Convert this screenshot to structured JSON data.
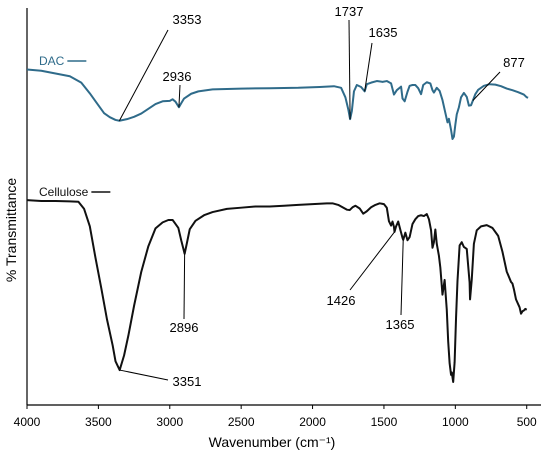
{
  "chart_data": {
    "type": "line",
    "title": "",
    "xlabel": "Wavenumber (cm⁻¹)",
    "ylabel": "% Transmittance",
    "xlim": [
      4000,
      400
    ],
    "x_reversed": true,
    "y_ticks_shown": false,
    "ylim": [
      0,
      100
    ],
    "grid": false,
    "x_ticks": [
      4000,
      3500,
      3000,
      2500,
      2000,
      1500,
      1000,
      500
    ],
    "x_tick_labels": [
      "4000",
      "3500",
      "3000",
      "2500",
      "2000",
      "1500",
      "1000",
      "500"
    ],
    "legend": "inline-top-left",
    "series": [
      {
        "name": "DAC",
        "label": "DAC",
        "color": "#2f6b8a",
        "points": [
          [
            4000,
            84.5
          ],
          [
            3900,
            84.2
          ],
          [
            3800,
            83.5
          ],
          [
            3700,
            82.8
          ],
          [
            3620,
            81.2
          ],
          [
            3560,
            78.5
          ],
          [
            3520,
            76.5
          ],
          [
            3460,
            73.5
          ],
          [
            3420,
            72.5
          ],
          [
            3380,
            71.8
          ],
          [
            3353,
            71.6
          ],
          [
            3300,
            72.0
          ],
          [
            3250,
            72.6
          ],
          [
            3200,
            73.4
          ],
          [
            3150,
            74.6
          ],
          [
            3100,
            75.8
          ],
          [
            3050,
            76.5
          ],
          [
            3000,
            76.6
          ],
          [
            2980,
            77.0
          ],
          [
            2960,
            76.4
          ],
          [
            2936,
            75.0
          ],
          [
            2920,
            76.0
          ],
          [
            2900,
            77.2
          ],
          [
            2850,
            78.4
          ],
          [
            2800,
            79.0
          ],
          [
            2700,
            79.5
          ],
          [
            2500,
            79.7
          ],
          [
            2300,
            79.8
          ],
          [
            2100,
            79.9
          ],
          [
            1950,
            80.1
          ],
          [
            1850,
            80.3
          ],
          [
            1800,
            79.9
          ],
          [
            1770,
            77.5
          ],
          [
            1750,
            74.5
          ],
          [
            1737,
            72.0
          ],
          [
            1725,
            74.0
          ],
          [
            1710,
            79.0
          ],
          [
            1690,
            80.6
          ],
          [
            1660,
            80.1
          ],
          [
            1635,
            79.0
          ],
          [
            1620,
            80.8
          ],
          [
            1590,
            81.2
          ],
          [
            1550,
            81.6
          ],
          [
            1510,
            81.4
          ],
          [
            1480,
            81.6
          ],
          [
            1450,
            81.0
          ],
          [
            1430,
            78.2
          ],
          [
            1410,
            79.3
          ],
          [
            1380,
            80.2
          ],
          [
            1370,
            77.2
          ],
          [
            1355,
            76.5
          ],
          [
            1335,
            78.9
          ],
          [
            1320,
            80.4
          ],
          [
            1300,
            80.6
          ],
          [
            1280,
            80.6
          ],
          [
            1260,
            79.8
          ],
          [
            1240,
            78.3
          ],
          [
            1225,
            80.6
          ],
          [
            1200,
            81.3
          ],
          [
            1175,
            81.0
          ],
          [
            1160,
            79.3
          ],
          [
            1150,
            78.7
          ],
          [
            1130,
            79.9
          ],
          [
            1110,
            79.1
          ],
          [
            1090,
            76.8
          ],
          [
            1070,
            73.6
          ],
          [
            1055,
            71.2
          ],
          [
            1045,
            72.1
          ],
          [
            1030,
            69.3
          ],
          [
            1020,
            67.0
          ],
          [
            1010,
            67.6
          ],
          [
            1000,
            70.6
          ],
          [
            990,
            73.2
          ],
          [
            975,
            75.0
          ],
          [
            960,
            77.5
          ],
          [
            940,
            78.6
          ],
          [
            920,
            77.6
          ],
          [
            905,
            75.4
          ],
          [
            890,
            75.5
          ],
          [
            877,
            76.7
          ],
          [
            860,
            78.3
          ],
          [
            840,
            79.4
          ],
          [
            800,
            80.4
          ],
          [
            760,
            80.8
          ],
          [
            720,
            80.7
          ],
          [
            680,
            80.3
          ],
          [
            640,
            79.7
          ],
          [
            600,
            79.3
          ],
          [
            560,
            78.8
          ],
          [
            520,
            78.2
          ],
          [
            500,
            77.5
          ],
          [
            490,
            77.4
          ]
        ]
      },
      {
        "name": "Cellulose",
        "label": "Cellulose",
        "color": "#111111",
        "points": [
          [
            4000,
            51.6
          ],
          [
            3900,
            51.4
          ],
          [
            3800,
            51.4
          ],
          [
            3700,
            51.3
          ],
          [
            3640,
            51.2
          ],
          [
            3600,
            49.4
          ],
          [
            3560,
            45.0
          ],
          [
            3520,
            37.0
          ],
          [
            3480,
            29.5
          ],
          [
            3440,
            21.6
          ],
          [
            3400,
            15.0
          ],
          [
            3380,
            11.0
          ],
          [
            3351,
            8.8
          ],
          [
            3320,
            12.5
          ],
          [
            3290,
            17.5
          ],
          [
            3250,
            25.0
          ],
          [
            3200,
            33.5
          ],
          [
            3150,
            40.0
          ],
          [
            3100,
            44.5
          ],
          [
            3050,
            46.0
          ],
          [
            3010,
            46.6
          ],
          [
            2980,
            46.6
          ],
          [
            2960,
            45.6
          ],
          [
            2940,
            44.6
          ],
          [
            2920,
            41.5
          ],
          [
            2905,
            39.4
          ],
          [
            2896,
            38.1
          ],
          [
            2880,
            40.8
          ],
          [
            2860,
            44.3
          ],
          [
            2820,
            46.4
          ],
          [
            2760,
            47.8
          ],
          [
            2700,
            48.6
          ],
          [
            2600,
            49.4
          ],
          [
            2500,
            49.7
          ],
          [
            2400,
            50.0
          ],
          [
            2300,
            50.0
          ],
          [
            2200,
            50.2
          ],
          [
            2100,
            50.4
          ],
          [
            2000,
            50.6
          ],
          [
            1900,
            50.8
          ],
          [
            1860,
            50.8
          ],
          [
            1820,
            50.4
          ],
          [
            1790,
            49.8
          ],
          [
            1760,
            49.2
          ],
          [
            1740,
            49.1
          ],
          [
            1720,
            49.8
          ],
          [
            1700,
            50.2
          ],
          [
            1670,
            49.5
          ],
          [
            1645,
            48.2
          ],
          [
            1620,
            48.8
          ],
          [
            1590,
            49.8
          ],
          [
            1560,
            50.4
          ],
          [
            1530,
            50.8
          ],
          [
            1500,
            50.6
          ],
          [
            1480,
            49.7
          ],
          [
            1465,
            46.3
          ],
          [
            1450,
            45.2
          ],
          [
            1440,
            46.2
          ],
          [
            1430,
            44.9
          ],
          [
            1426,
            43.6
          ],
          [
            1415,
            45.0
          ],
          [
            1400,
            46.2
          ],
          [
            1385,
            44.1
          ],
          [
            1370,
            42.1
          ],
          [
            1365,
            41.6
          ],
          [
            1350,
            43.4
          ],
          [
            1335,
            41.5
          ],
          [
            1320,
            42.3
          ],
          [
            1300,
            45.6
          ],
          [
            1280,
            46.8
          ],
          [
            1260,
            47.6
          ],
          [
            1240,
            47.8
          ],
          [
            1220,
            47.6
          ],
          [
            1200,
            48.1
          ],
          [
            1185,
            46.8
          ],
          [
            1170,
            44.0
          ],
          [
            1160,
            39.6
          ],
          [
            1150,
            41.0
          ],
          [
            1140,
            44.2
          ],
          [
            1130,
            40.6
          ],
          [
            1115,
            37.6
          ],
          [
            1105,
            34.6
          ],
          [
            1090,
            27.8
          ],
          [
            1075,
            31.5
          ],
          [
            1060,
            24.0
          ],
          [
            1050,
            16.0
          ],
          [
            1040,
            10.5
          ],
          [
            1030,
            7.6
          ],
          [
            1025,
            8.2
          ],
          [
            1015,
            5.8
          ],
          [
            1005,
            10.8
          ],
          [
            995,
            22.0
          ],
          [
            985,
            31.2
          ],
          [
            970,
            40.2
          ],
          [
            955,
            41.0
          ],
          [
            940,
            39.8
          ],
          [
            920,
            39.3
          ],
          [
            900,
            30.8
          ],
          [
            897,
            26.6
          ],
          [
            885,
            31.6
          ],
          [
            870,
            40.6
          ],
          [
            850,
            44.0
          ],
          [
            820,
            45.0
          ],
          [
            780,
            45.3
          ],
          [
            740,
            44.6
          ],
          [
            700,
            42.6
          ],
          [
            670,
            38.6
          ],
          [
            640,
            33.6
          ],
          [
            610,
            31.0
          ],
          [
            600,
            30.6
          ],
          [
            590,
            29.2
          ],
          [
            575,
            26.6
          ],
          [
            560,
            25.4
          ],
          [
            550,
            24.6
          ],
          [
            540,
            23.0
          ],
          [
            530,
            23.6
          ],
          [
            520,
            23.8
          ],
          [
            510,
            24.2
          ],
          [
            500,
            24.0
          ]
        ]
      }
    ],
    "annotations": [
      {
        "text": "3353",
        "series": "DAC",
        "x": 3353
      },
      {
        "text": "2936",
        "series": "DAC",
        "x": 2936
      },
      {
        "text": "1737",
        "series": "DAC",
        "x": 1737
      },
      {
        "text": "1635",
        "series": "DAC",
        "x": 1635
      },
      {
        "text": "877",
        "series": "DAC",
        "x": 877
      },
      {
        "text": "2896",
        "series": "Cellulose",
        "x": 2896
      },
      {
        "text": "1426",
        "series": "Cellulose",
        "x": 1426
      },
      {
        "text": "1365",
        "series": "Cellulose",
        "x": 1365
      },
      {
        "text": "3351",
        "series": "Cellulose",
        "x": 3351
      }
    ]
  }
}
